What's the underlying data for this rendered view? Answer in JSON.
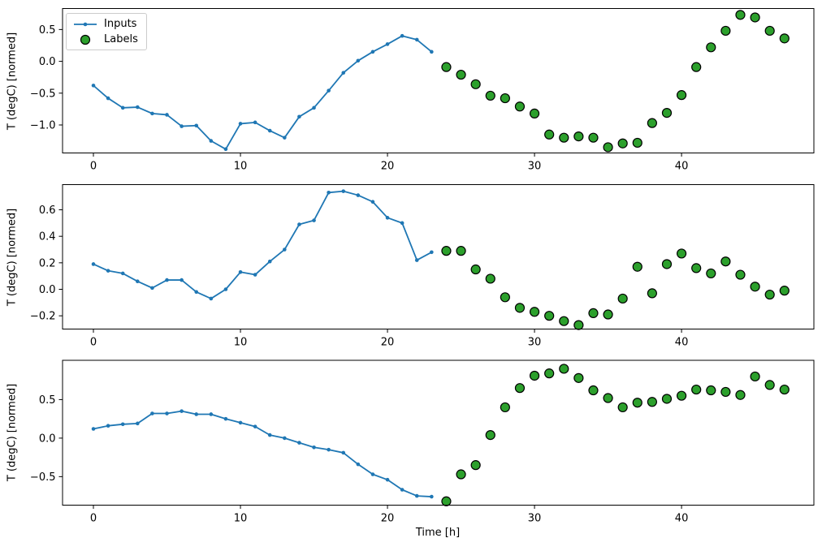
{
  "colors": {
    "inputs": "#1f77b4",
    "labels_fill": "#2ca02c",
    "labels_edge": "#000000",
    "axes": "#000000",
    "legend_border": "#cccccc",
    "background": "#ffffff"
  },
  "legend": {
    "position": "upper-left",
    "items": [
      {
        "label": "Inputs",
        "series": "inputs"
      },
      {
        "label": "Labels",
        "series": "labels"
      }
    ]
  },
  "chart_data": [
    {
      "type": "line+scatter",
      "title": "",
      "xlabel": "",
      "ylabel": "T (degC) [normed]",
      "grid": false,
      "xlim": [
        -2.1,
        49.0
      ],
      "ylim": [
        -1.44,
        0.83
      ],
      "x_ticks": [
        0,
        10,
        20,
        30,
        40
      ],
      "y_ticks": [
        {
          "v": 0.5,
          "label": "0.5"
        },
        {
          "v": 0.0,
          "label": "0.0"
        },
        {
          "v": -0.5,
          "label": "−0.5"
        },
        {
          "v": -1.0,
          "label": "−1.0"
        }
      ],
      "series": [
        {
          "name": "Inputs",
          "type": "line",
          "color": "#1f77b4",
          "x": [
            0,
            1,
            2,
            3,
            4,
            5,
            6,
            7,
            8,
            9,
            10,
            11,
            12,
            13,
            14,
            15,
            16,
            17,
            18,
            19,
            20,
            21,
            22,
            23
          ],
          "values": [
            -0.38,
            -0.58,
            -0.73,
            -0.72,
            -0.82,
            -0.84,
            -1.02,
            -1.01,
            -1.25,
            -1.38,
            -0.98,
            -0.96,
            -1.09,
            -1.2,
            -0.87,
            -0.73,
            -0.46,
            -0.18,
            0.01,
            0.15,
            0.27,
            0.4,
            0.34,
            0.15
          ]
        },
        {
          "name": "Labels",
          "type": "scatter",
          "color": "#2ca02c",
          "edge_color": "#000000",
          "x": [
            24,
            25,
            26,
            27,
            28,
            29,
            30,
            31,
            32,
            33,
            34,
            35,
            36,
            37,
            38,
            39,
            40,
            41,
            42,
            43,
            44,
            45,
            46,
            47
          ],
          "values": [
            -0.09,
            -0.21,
            -0.36,
            -0.54,
            -0.58,
            -0.71,
            -0.82,
            -1.15,
            -1.2,
            -1.18,
            -1.2,
            -1.35,
            -1.29,
            -1.28,
            -0.97,
            -0.81,
            -0.53,
            -0.09,
            0.22,
            0.48,
            0.73,
            0.69,
            0.48,
            0.36
          ]
        }
      ]
    },
    {
      "type": "line+scatter",
      "title": "",
      "xlabel": "",
      "ylabel": "T (degC) [normed]",
      "grid": false,
      "xlim": [
        -2.1,
        49.0
      ],
      "ylim": [
        -0.3,
        0.79
      ],
      "x_ticks": [
        0,
        10,
        20,
        30,
        40
      ],
      "y_ticks": [
        {
          "v": 0.6,
          "label": "0.6"
        },
        {
          "v": 0.4,
          "label": "0.4"
        },
        {
          "v": 0.2,
          "label": "0.2"
        },
        {
          "v": 0.0,
          "label": "0.0"
        },
        {
          "v": -0.2,
          "label": "−0.2"
        }
      ],
      "series": [
        {
          "name": "Inputs",
          "type": "line",
          "color": "#1f77b4",
          "x": [
            0,
            1,
            2,
            3,
            4,
            5,
            6,
            7,
            8,
            9,
            10,
            11,
            12,
            13,
            14,
            15,
            16,
            17,
            18,
            19,
            20,
            21,
            22,
            23
          ],
          "values": [
            0.19,
            0.14,
            0.12,
            0.06,
            0.01,
            0.07,
            0.07,
            -0.02,
            -0.07,
            0.0,
            0.13,
            0.11,
            0.21,
            0.3,
            0.49,
            0.52,
            0.73,
            0.74,
            0.71,
            0.66,
            0.54,
            0.5,
            0.22,
            0.28
          ]
        },
        {
          "name": "Labels",
          "type": "scatter",
          "color": "#2ca02c",
          "edge_color": "#000000",
          "x": [
            24,
            25,
            26,
            27,
            28,
            29,
            30,
            31,
            32,
            33,
            34,
            35,
            36,
            37,
            38,
            39,
            40,
            41,
            42,
            43,
            44,
            45,
            46,
            47
          ],
          "values": [
            0.29,
            0.29,
            0.15,
            0.08,
            -0.06,
            -0.14,
            -0.17,
            -0.2,
            -0.24,
            -0.27,
            -0.18,
            -0.19,
            -0.07,
            0.17,
            -0.03,
            0.19,
            0.27,
            0.16,
            0.12,
            0.21,
            0.11,
            0.02,
            -0.04,
            -0.01
          ]
        }
      ]
    },
    {
      "type": "line+scatter",
      "title": "",
      "xlabel": "Time [h]",
      "ylabel": "T (degC) [normed]",
      "grid": false,
      "xlim": [
        -2.1,
        49.0
      ],
      "ylim": [
        -0.87,
        1.01
      ],
      "x_ticks": [
        0,
        10,
        20,
        30,
        40
      ],
      "y_ticks": [
        {
          "v": 0.5,
          "label": "0.5"
        },
        {
          "v": 0.0,
          "label": "0.0"
        },
        {
          "v": -0.5,
          "label": "−0.5"
        }
      ],
      "series": [
        {
          "name": "Inputs",
          "type": "line",
          "color": "#1f77b4",
          "x": [
            0,
            1,
            2,
            3,
            4,
            5,
            6,
            7,
            8,
            9,
            10,
            11,
            12,
            13,
            14,
            15,
            16,
            17,
            18,
            19,
            20,
            21,
            22,
            23
          ],
          "values": [
            0.12,
            0.16,
            0.18,
            0.19,
            0.32,
            0.32,
            0.35,
            0.31,
            0.31,
            0.25,
            0.2,
            0.15,
            0.04,
            0.0,
            -0.06,
            -0.12,
            -0.15,
            -0.19,
            -0.34,
            -0.47,
            -0.54,
            -0.67,
            -0.75,
            -0.76
          ]
        },
        {
          "name": "Labels",
          "type": "scatter",
          "color": "#2ca02c",
          "edge_color": "#000000",
          "x": [
            24,
            25,
            26,
            27,
            28,
            29,
            30,
            31,
            32,
            33,
            34,
            35,
            36,
            37,
            38,
            39,
            40,
            41,
            42,
            43,
            44,
            45,
            46,
            47
          ],
          "values": [
            -0.82,
            -0.47,
            -0.35,
            0.04,
            0.4,
            0.65,
            0.81,
            0.84,
            0.9,
            0.78,
            0.62,
            0.52,
            0.4,
            0.46,
            0.47,
            0.51,
            0.55,
            0.63,
            0.62,
            0.6,
            0.56,
            0.8,
            0.69,
            0.63
          ]
        }
      ]
    }
  ]
}
